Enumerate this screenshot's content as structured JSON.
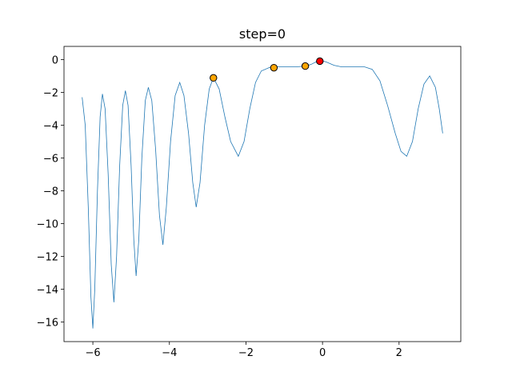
{
  "chart_data": {
    "type": "line",
    "title": "step=0",
    "x": [
      -6.28,
      -6.2,
      -6.12,
      -6.05,
      -6.0,
      -5.95,
      -5.88,
      -5.81,
      -5.75,
      -5.68,
      -5.6,
      -5.52,
      -5.45,
      -5.38,
      -5.3,
      -5.22,
      -5.15,
      -5.08,
      -5.0,
      -4.93,
      -4.87,
      -4.8,
      -4.72,
      -4.63,
      -4.55,
      -4.46,
      -4.36,
      -4.26,
      -4.17,
      -4.08,
      -3.97,
      -3.85,
      -3.73,
      -3.62,
      -3.5,
      -3.39,
      -3.3,
      -3.2,
      -3.08,
      -2.96,
      -2.85,
      -2.7,
      -2.55,
      -2.4,
      -2.2,
      -2.05,
      -1.9,
      -1.75,
      -1.6,
      -1.4,
      -1.2,
      -1.0,
      -0.7,
      -0.45,
      -0.3,
      -0.15,
      -0.05,
      0.1,
      0.3,
      0.5,
      0.8,
      1.1,
      1.3,
      1.5,
      1.7,
      1.9,
      2.05,
      2.2,
      2.35,
      2.5,
      2.65,
      2.8,
      2.95,
      3.05,
      3.14
    ],
    "series": [
      {
        "color": "#1f77b4",
        "values": [
          -2.3,
          -4.0,
          -9.0,
          -14.5,
          -16.4,
          -14.0,
          -8.0,
          -3.5,
          -2.1,
          -3.0,
          -7.0,
          -12.5,
          -14.8,
          -12.0,
          -6.5,
          -2.8,
          -1.9,
          -2.8,
          -6.5,
          -11.0,
          -13.2,
          -11.0,
          -6.0,
          -2.5,
          -1.7,
          -2.5,
          -5.5,
          -9.5,
          -11.3,
          -9.0,
          -5.0,
          -2.2,
          -1.4,
          -2.2,
          -4.5,
          -7.5,
          -9.0,
          -7.5,
          -4.0,
          -1.8,
          -1.1,
          -1.8,
          -3.5,
          -5.0,
          -5.9,
          -5.0,
          -3.0,
          -1.4,
          -0.7,
          -0.5,
          -0.45,
          -0.45,
          -0.45,
          -0.4,
          -0.3,
          -0.12,
          -0.05,
          -0.15,
          -0.35,
          -0.45,
          -0.45,
          -0.45,
          -0.6,
          -1.3,
          -2.8,
          -4.5,
          -5.6,
          -5.9,
          -5.0,
          -3.0,
          -1.5,
          -1.0,
          -1.7,
          -3.0,
          -4.5
        ]
      }
    ],
    "points": [
      {
        "x": -2.85,
        "y": -1.12,
        "color": "#ffa500"
      },
      {
        "x": -1.27,
        "y": -0.5,
        "color": "#ffa500"
      },
      {
        "x": -0.45,
        "y": -0.4,
        "color": "#ffa500"
      },
      {
        "x": -0.07,
        "y": -0.1,
        "color": "#ff0000"
      }
    ],
    "xlim": [
      -6.754,
      3.613
    ],
    "ylim": [
      -17.2,
      0.8
    ],
    "xticks": [
      {
        "value": -6,
        "label": "−6"
      },
      {
        "value": -4,
        "label": "−4"
      },
      {
        "value": -2,
        "label": "−2"
      },
      0,
      2
    ],
    "yticks": [
      0,
      {
        "value": -2,
        "label": "−2"
      },
      {
        "value": -4,
        "label": "−4"
      },
      {
        "value": -6,
        "label": "−6"
      },
      {
        "value": -8,
        "label": "−8"
      },
      {
        "value": -10,
        "label": "−10"
      },
      {
        "value": -12,
        "label": "−12"
      },
      {
        "value": -14,
        "label": "−14"
      },
      {
        "value": -16,
        "label": "−16"
      }
    ]
  }
}
